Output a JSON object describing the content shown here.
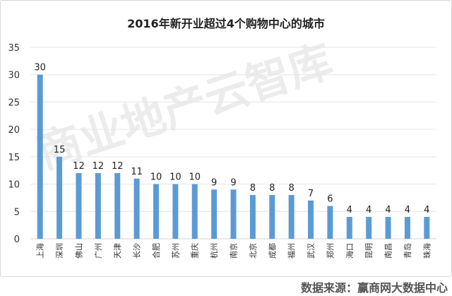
{
  "chart_data": {
    "type": "bar",
    "title": "2016年新开业超过4个购物中心的城市",
    "categories": [
      "上海",
      "深圳",
      "佛山",
      "广州",
      "天津",
      "长沙",
      "合肥",
      "苏州",
      "重庆",
      "杭州",
      "南京",
      "北京",
      "成都",
      "福州",
      "武汉",
      "郑州",
      "海口",
      "昆明",
      "南昌",
      "青岛",
      "珠海"
    ],
    "values": [
      30,
      15,
      12,
      12,
      12,
      11,
      10,
      10,
      10,
      9,
      9,
      8,
      8,
      8,
      7,
      6,
      4,
      4,
      4,
      4,
      4
    ],
    "xlabel": "",
    "ylabel": "",
    "ylim": [
      0,
      35
    ],
    "yticks": [
      0,
      5,
      10,
      15,
      20,
      25,
      30,
      35
    ],
    "grid": true,
    "legend": "none",
    "bar_color": "#5b9bd5"
  },
  "source": "数据来源：赢商网大数据中心",
  "watermark": "商业地产云智库"
}
